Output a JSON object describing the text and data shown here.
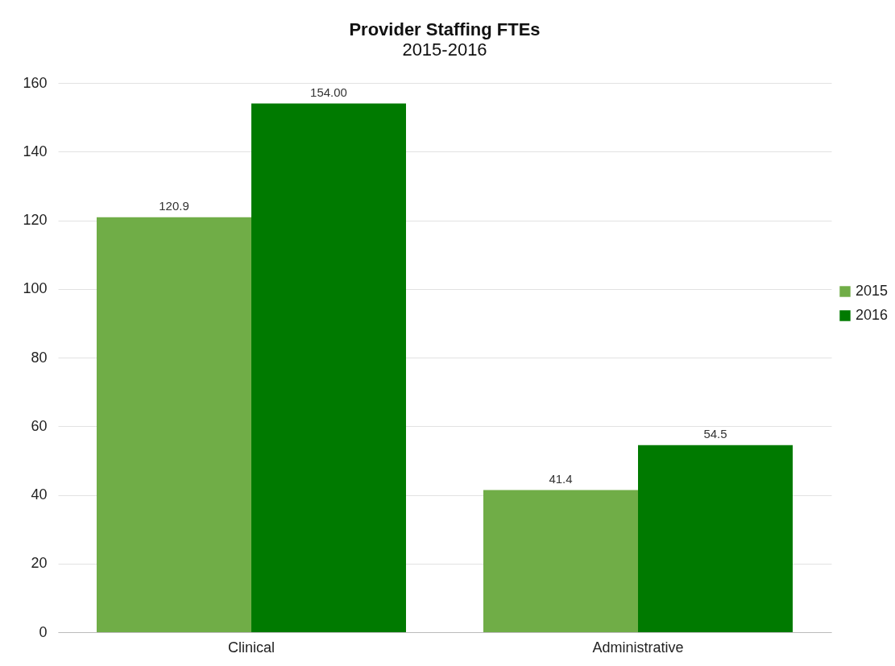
{
  "chart_data": {
    "type": "bar",
    "title": "Provider Staffing FTEs",
    "subtitle": "2015-2016",
    "categories": [
      "Clinical",
      "Administrative"
    ],
    "series": [
      {
        "name": "2015",
        "color": "#70ad47",
        "values": [
          120.9,
          41.4
        ],
        "value_labels": [
          "120.9",
          "41.4"
        ]
      },
      {
        "name": "2016",
        "color": "#007a00",
        "values": [
          154.0,
          54.5
        ],
        "value_labels": [
          "154.00",
          "54.5"
        ]
      }
    ],
    "ylim": [
      0,
      160
    ],
    "yticks": [
      0,
      20,
      40,
      60,
      80,
      100,
      120,
      140,
      160
    ],
    "grid": "y",
    "legend": "right"
  }
}
